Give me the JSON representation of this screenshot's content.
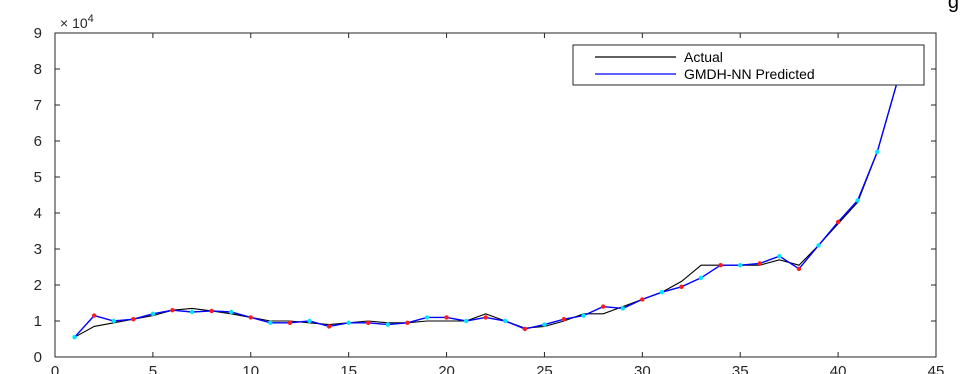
{
  "corner_text": "g",
  "chart_data": {
    "type": "line",
    "title": "",
    "xlabel": "",
    "ylabel": "",
    "xlim": [
      0,
      45
    ],
    "ylim": [
      0,
      9
    ],
    "y_multiplier": "× 10",
    "y_exponent": "4",
    "x_ticks": [
      "0",
      "5",
      "10",
      "15",
      "20",
      "25",
      "30",
      "35",
      "40",
      "45"
    ],
    "y_ticks": [
      "0",
      "1",
      "2",
      "3",
      "4",
      "5",
      "6",
      "7",
      "8",
      "9"
    ],
    "grid": false,
    "legend_position": "top-right",
    "x": [
      1,
      2,
      3,
      4,
      5,
      6,
      7,
      8,
      9,
      10,
      11,
      12,
      13,
      14,
      15,
      16,
      17,
      18,
      19,
      20,
      21,
      22,
      23,
      24,
      25,
      26,
      27,
      28,
      29,
      30,
      31,
      32,
      33,
      34,
      35,
      36,
      37,
      38,
      39,
      40,
      41,
      42,
      43,
      44
    ],
    "series": [
      {
        "name": "Actual",
        "color": "#000000",
        "values": [
          0.55,
          0.85,
          0.95,
          1.05,
          1.15,
          1.3,
          1.35,
          1.28,
          1.2,
          1.1,
          1.0,
          1.0,
          0.95,
          0.9,
          0.95,
          1.0,
          0.95,
          0.95,
          1.0,
          1.0,
          1.0,
          1.2,
          1.0,
          0.8,
          0.85,
          1.0,
          1.2,
          1.2,
          1.4,
          1.6,
          1.8,
          2.1,
          2.55,
          2.55,
          2.55,
          2.55,
          2.7,
          2.55,
          3.1,
          3.7,
          4.3,
          5.7,
          7.6,
          8.3
        ]
      },
      {
        "name": "GMDH-NN Predicted",
        "color": "#0000ff",
        "marker_colors": [
          "#00e5ff",
          "#ff1a1a"
        ],
        "values": [
          0.55,
          1.15,
          1.0,
          1.05,
          1.2,
          1.3,
          1.25,
          1.28,
          1.25,
          1.1,
          0.95,
          0.95,
          1.0,
          0.85,
          0.95,
          0.95,
          0.9,
          0.95,
          1.1,
          1.1,
          1.0,
          1.1,
          1.0,
          0.78,
          0.9,
          1.05,
          1.15,
          1.4,
          1.35,
          1.6,
          1.8,
          1.95,
          2.2,
          2.55,
          2.55,
          2.6,
          2.8,
          2.45,
          3.1,
          3.75,
          4.35,
          5.7,
          7.6,
          8.25
        ]
      }
    ]
  }
}
